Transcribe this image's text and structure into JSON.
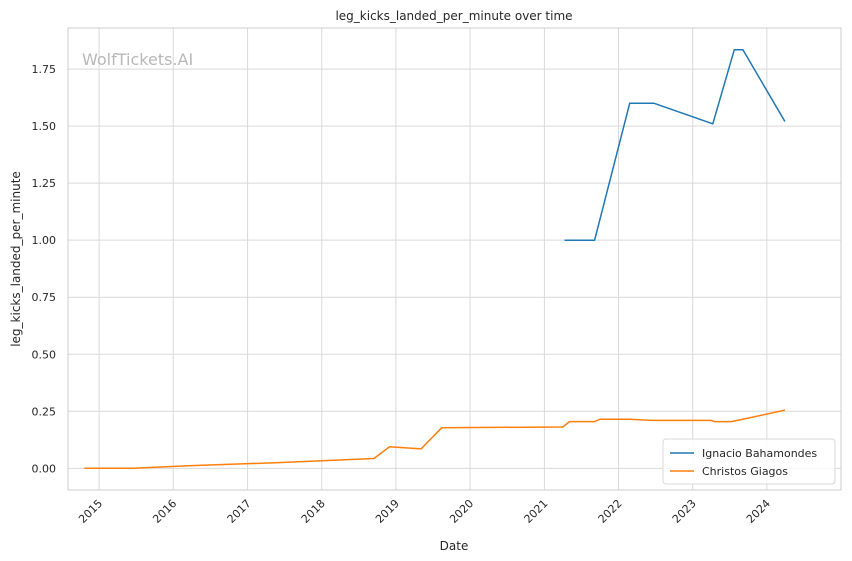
{
  "chart_data": {
    "type": "line",
    "title": "leg_kicks_landed_per_minute over time",
    "xlabel": "Date",
    "ylabel": "leg_kicks_landed_per_minute",
    "watermark": "WolfTickets.AI",
    "xlim": [
      "2014-08-01",
      "2024-12-31"
    ],
    "ylim": [
      -0.095,
      1.93
    ],
    "x_ticks": [
      "2015",
      "2016",
      "2017",
      "2018",
      "2019",
      "2020",
      "2021",
      "2022",
      "2023",
      "2024"
    ],
    "y_ticks": [
      "0.00",
      "0.25",
      "0.50",
      "0.75",
      "1.00",
      "1.25",
      "1.50",
      "1.75"
    ],
    "grid": true,
    "legend_position": "bottom-right",
    "series": [
      {
        "name": "Ignacio Bahamondes",
        "color": "#1f77b4",
        "x": [
          "2021-04-10",
          "2021-09-05",
          "2022-02-25",
          "2022-06-25",
          "2023-04-10",
          "2023-07-25",
          "2023-09-05",
          "2024-03-30"
        ],
        "y": [
          1.0,
          1.0,
          1.6,
          1.6,
          1.51,
          1.835,
          1.835,
          1.52
        ]
      },
      {
        "name": "Christos Giagos",
        "color": "#ff7f0e",
        "x": [
          "2014-10-20",
          "2015-06-15",
          "2016-04-01",
          "2017-06-01",
          "2018-09-15",
          "2018-12-01",
          "2019-05-05",
          "2019-08-15",
          "2021-04-01",
          "2021-05-05",
          "2021-09-05",
          "2021-10-01",
          "2022-03-01",
          "2022-06-15",
          "2023-04-01",
          "2023-04-20",
          "2023-07-10",
          "2023-10-01",
          "2024-03-30"
        ],
        "y": [
          0.0,
          0.0,
          0.012,
          0.025,
          0.043,
          0.095,
          0.085,
          0.178,
          0.181,
          0.205,
          0.205,
          0.215,
          0.215,
          0.21,
          0.21,
          0.205,
          0.205,
          0.22,
          0.255
        ]
      }
    ]
  }
}
